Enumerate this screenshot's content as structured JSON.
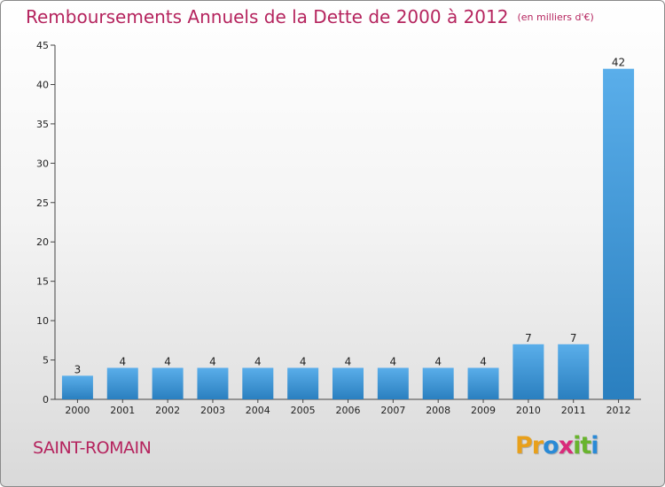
{
  "title": "Remboursements Annuels de la Dette de 2000 à 2012",
  "subtitle": "(en milliers d'€)",
  "commune": "SAINT-ROMAIN",
  "logo": {
    "letters": [
      "P",
      "r",
      "o",
      "x",
      "i",
      "t",
      "i"
    ],
    "colors": [
      "#e8a01c",
      "#e8a01c",
      "#2a8ad6",
      "#d92a7a",
      "#69b42e",
      "#69b42e",
      "#2a8ad6"
    ]
  },
  "colors": {
    "bar_light": "#5aaeea",
    "bar_dark": "#2a7fbf",
    "title": "#b5245e"
  },
  "chart_data": {
    "type": "bar",
    "title": "Remboursements Annuels de la Dette de 2000 à 2012",
    "subtitle": "(en milliers d'€)",
    "categories": [
      "2000",
      "2001",
      "2002",
      "2003",
      "2004",
      "2005",
      "2006",
      "2007",
      "2008",
      "2009",
      "2010",
      "2011",
      "2012"
    ],
    "values": [
      3,
      4,
      4,
      4,
      4,
      4,
      4,
      4,
      4,
      4,
      7,
      7,
      42
    ],
    "ylim": [
      0,
      45
    ],
    "yticks": [
      0,
      5,
      10,
      15,
      20,
      25,
      30,
      35,
      40,
      45
    ],
    "grid": false,
    "data_labels": true
  }
}
